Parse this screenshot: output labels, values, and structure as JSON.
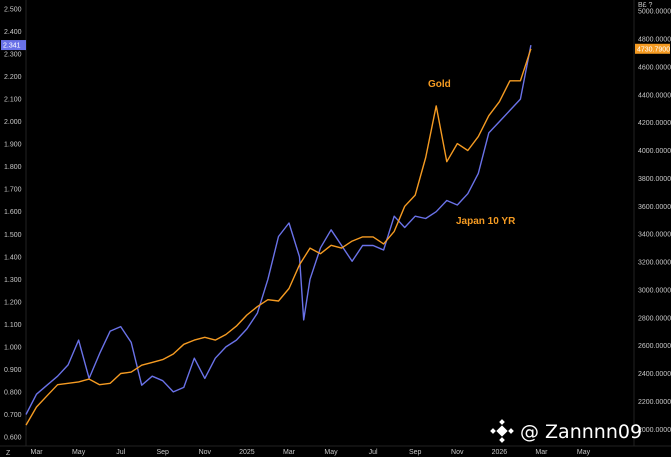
{
  "watermark": {
    "handle": "@ Zannnn09",
    "logo_icon": "binance-logo-icon"
  },
  "corner_labels": {
    "bottom_left": "Z",
    "top_right": "B£ ?"
  },
  "chart_data": {
    "type": "line",
    "title": "",
    "xlabel": "",
    "ylabel": "",
    "grid": false,
    "x_ticks": [
      {
        "label": "Mar",
        "x": 0.5
      },
      {
        "label": "May",
        "x": 2.5
      },
      {
        "label": "Jul",
        "x": 4.5
      },
      {
        "label": "Sep",
        "x": 6.5
      },
      {
        "label": "Nov",
        "x": 8.5
      },
      {
        "label": "2025",
        "x": 10.5
      },
      {
        "label": "Mar",
        "x": 12.5
      },
      {
        "label": "May",
        "x": 14.5
      },
      {
        "label": "Jul",
        "x": 16.5
      },
      {
        "label": "Sep",
        "x": 18.5
      },
      {
        "label": "Nov",
        "x": 20.5
      },
      {
        "label": "2026",
        "x": 22.5
      },
      {
        "label": "Mar",
        "x": 24.5
      },
      {
        "label": "May",
        "x": 26.5
      }
    ],
    "xlim": [
      0,
      28.9
    ],
    "left_axis": {
      "ylim": [
        0.56,
        2.54
      ],
      "ticks": [
        "0.600",
        "0.700",
        "0.800",
        "0.900",
        "1.000",
        "1.100",
        "1.200",
        "1.300",
        "1.400",
        "1.500",
        "1.600",
        "1.700",
        "1.800",
        "1.900",
        "2.000",
        "2.100",
        "2.200",
        "2.300",
        "2.400",
        "2.500"
      ]
    },
    "right_axis": {
      "ylim": [
        1880,
        5080
      ],
      "ticks": [
        "2000.0000",
        "2200.0000",
        "2400.0000",
        "2600.0000",
        "2800.0000",
        "3000.0000",
        "3200.0000",
        "3400.0000",
        "3600.0000",
        "3800.0000",
        "4000.0000",
        "4200.0000",
        "4400.0000",
        "4600.0000",
        "4800.0000",
        "5000.0000"
      ]
    },
    "series": [
      {
        "name": "Japan 10 YR",
        "axis": "left",
        "color": "#6a72e8",
        "last_value": "2.341",
        "x": [
          0,
          0.5,
          1,
          1.5,
          2,
          2.5,
          3,
          3.5,
          4,
          4.5,
          5,
          5.5,
          6,
          6.5,
          7,
          7.5,
          8,
          8.5,
          9,
          9.5,
          10,
          10.5,
          11,
          11.5,
          12,
          12.5,
          13,
          13.2,
          13.5,
          14,
          14.5,
          15,
          15.5,
          16,
          16.5,
          17,
          17.5,
          18,
          18.5,
          19,
          19.5,
          20,
          20.5,
          21,
          21.5,
          22,
          22.5,
          23,
          23.5,
          24
        ],
        "y": [
          0.7,
          0.79,
          0.83,
          0.87,
          0.92,
          1.03,
          0.86,
          0.97,
          1.07,
          1.09,
          1.02,
          0.83,
          0.87,
          0.85,
          0.8,
          0.82,
          0.95,
          0.86,
          0.95,
          1.0,
          1.03,
          1.08,
          1.15,
          1.3,
          1.49,
          1.55,
          1.4,
          1.12,
          1.3,
          1.44,
          1.52,
          1.45,
          1.38,
          1.45,
          1.45,
          1.43,
          1.58,
          1.53,
          1.58,
          1.57,
          1.6,
          1.65,
          1.63,
          1.68,
          1.77,
          1.95,
          2.0,
          2.05,
          2.1,
          2.34
        ]
      },
      {
        "name": "Gold",
        "axis": "right",
        "color": "#f59b22",
        "last_value": "4730.7900",
        "x": [
          0,
          0.5,
          1,
          1.5,
          2,
          2.5,
          3,
          3.5,
          4,
          4.5,
          5,
          5.5,
          6,
          6.5,
          7,
          7.5,
          8,
          8.5,
          9,
          9.5,
          10,
          10.5,
          11,
          11.5,
          12,
          12.5,
          13,
          13.5,
          14,
          14.5,
          15,
          15.5,
          16,
          16.5,
          17,
          17.5,
          18,
          18.5,
          19,
          19.5,
          20,
          20.5,
          21,
          21.5,
          22,
          22.5,
          23,
          23.5,
          24
        ],
        "y": [
          2030,
          2160,
          2240,
          2320,
          2330,
          2340,
          2360,
          2320,
          2330,
          2400,
          2410,
          2460,
          2480,
          2500,
          2540,
          2610,
          2640,
          2660,
          2640,
          2680,
          2740,
          2820,
          2880,
          2930,
          2920,
          3010,
          3180,
          3300,
          3260,
          3320,
          3300,
          3350,
          3380,
          3380,
          3330,
          3420,
          3600,
          3680,
          3950,
          4320,
          3920,
          4050,
          4000,
          4100,
          4250,
          4350,
          4500,
          4500,
          4730
        ]
      }
    ]
  }
}
